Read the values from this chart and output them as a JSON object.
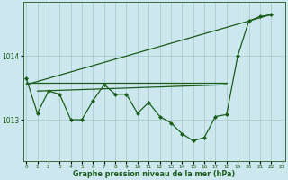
{
  "xlabel": "Graphe pression niveau de la mer (hPa)",
  "background_color": "#cce8ee",
  "plot_bg_color": "#cce8ee",
  "grid_color": "#aacccc",
  "line_color": "#1a5c1a",
  "text_color": "#1a5c1a",
  "main_x": [
    0,
    1,
    2,
    3,
    4,
    5,
    6,
    7,
    8,
    9,
    10,
    11,
    12,
    13,
    14,
    15,
    16,
    17,
    18,
    19,
    20,
    21,
    22
  ],
  "main_y": [
    1013.65,
    1013.1,
    1013.45,
    1013.4,
    1013.0,
    1013.0,
    1013.3,
    1013.55,
    1013.4,
    1013.4,
    1013.1,
    1013.27,
    1013.05,
    1012.95,
    1012.78,
    1012.67,
    1012.72,
    1013.05,
    1013.08,
    1014.0,
    1014.55,
    1014.62,
    1014.65
  ],
  "trend1_x": [
    0,
    22
  ],
  "trend1_y": [
    1013.55,
    1014.65
  ],
  "trend2_x": [
    1,
    18
  ],
  "trend2_y": [
    1013.45,
    1013.55
  ],
  "trend3_x": [
    0,
    18
  ],
  "trend3_y": [
    1013.58,
    1013.58
  ],
  "ylim": [
    1012.35,
    1014.85
  ],
  "yticks": [
    1013,
    1014
  ],
  "xticks": [
    0,
    1,
    2,
    3,
    4,
    5,
    6,
    7,
    8,
    9,
    10,
    11,
    12,
    13,
    14,
    15,
    16,
    17,
    18,
    19,
    20,
    21,
    22,
    23
  ]
}
